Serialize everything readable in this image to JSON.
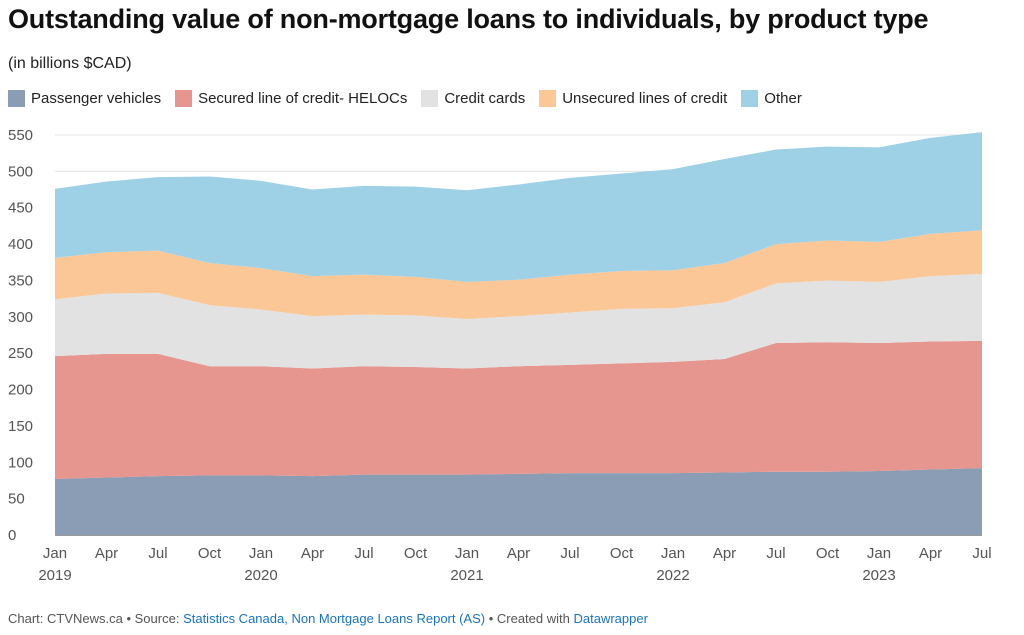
{
  "header": {
    "title": "Outstanding value of non-mortgage loans to individuals, by product type",
    "subtitle": "(in billions $CAD)"
  },
  "footer": {
    "chart_prefix": "Chart: CTVNews.ca • Source: ",
    "source_link": "Statistics Canada, Non Mortgage Loans Report (AS)",
    "created_prefix": " • Created with ",
    "tool_link": "Datawrapper"
  },
  "chart_data": {
    "type": "area",
    "stacked": true,
    "title": "Outstanding value of non-mortgage loans to individuals, by product type",
    "subtitle": "(in billions $CAD)",
    "ylim": [
      0,
      550
    ],
    "yticks": [
      0,
      50,
      100,
      150,
      200,
      250,
      300,
      350,
      400,
      450,
      500,
      550
    ],
    "grid": true,
    "legend_position": "top",
    "x": [
      "Jan 2019",
      "Apr 2019",
      "Jul 2019",
      "Oct 2019",
      "Jan 2020",
      "Apr 2020",
      "Jul 2020",
      "Oct 2020",
      "Jan 2021",
      "Apr 2021",
      "Jul 2021",
      "Oct 2021",
      "Jan 2022",
      "Apr 2022",
      "Jul 2022",
      "Oct 2022",
      "Jan 2023",
      "Apr 2023",
      "Jul 2023"
    ],
    "xticks": [
      {
        "month": "Jan",
        "year": "2019"
      },
      {
        "month": "Apr",
        "year": ""
      },
      {
        "month": "Jul",
        "year": ""
      },
      {
        "month": "Oct",
        "year": ""
      },
      {
        "month": "Jan",
        "year": "2020"
      },
      {
        "month": "Apr",
        "year": ""
      },
      {
        "month": "Jul",
        "year": ""
      },
      {
        "month": "Oct",
        "year": ""
      },
      {
        "month": "Jan",
        "year": "2021"
      },
      {
        "month": "Apr",
        "year": ""
      },
      {
        "month": "Jul",
        "year": ""
      },
      {
        "month": "Oct",
        "year": ""
      },
      {
        "month": "Jan",
        "year": "2022"
      },
      {
        "month": "Apr",
        "year": ""
      },
      {
        "month": "Jul",
        "year": ""
      },
      {
        "month": "Oct",
        "year": ""
      },
      {
        "month": "Jan",
        "year": "2023"
      },
      {
        "month": "Apr",
        "year": ""
      },
      {
        "month": "Jul",
        "year": ""
      }
    ],
    "series": [
      {
        "name": "Passenger vehicles",
        "color": "#8a9db4",
        "values": [
          77,
          79,
          81,
          82,
          82,
          81,
          83,
          83,
          83,
          84,
          85,
          85,
          85,
          86,
          87,
          87,
          88,
          90,
          92
        ]
      },
      {
        "name": "Secured line of credit- HELOCs",
        "color": "#e6958f",
        "values": [
          169,
          170,
          168,
          150,
          150,
          148,
          149,
          148,
          146,
          148,
          149,
          151,
          153,
          156,
          177,
          178,
          176,
          176,
          175
        ]
      },
      {
        "name": "Credit cards",
        "color": "#e2e2e2",
        "values": [
          78,
          83,
          84,
          84,
          78,
          72,
          71,
          71,
          68,
          69,
          72,
          75,
          74,
          78,
          82,
          85,
          84,
          90,
          92
        ]
      },
      {
        "name": "Unsecured lines of credit",
        "color": "#fbc796",
        "values": [
          57,
          57,
          58,
          58,
          57,
          55,
          55,
          53,
          51,
          50,
          52,
          52,
          52,
          54,
          54,
          55,
          55,
          58,
          60
        ]
      },
      {
        "name": "Other",
        "color": "#9ed1e6",
        "values": [
          95,
          97,
          101,
          119,
          120,
          119,
          122,
          124,
          126,
          131,
          133,
          134,
          139,
          143,
          130,
          129,
          130,
          132,
          135
        ]
      }
    ]
  }
}
